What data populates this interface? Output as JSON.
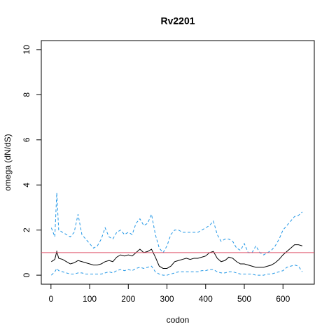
{
  "chart_data": {
    "type": "line",
    "title": "Rv2201",
    "xlabel": "codon",
    "ylabel": "omega (dN/dS)",
    "x": [
      1,
      10,
      15,
      20,
      30,
      40,
      50,
      60,
      70,
      80,
      90,
      100,
      110,
      120,
      130,
      140,
      150,
      160,
      170,
      180,
      190,
      200,
      210,
      220,
      230,
      240,
      250,
      260,
      270,
      280,
      290,
      300,
      310,
      320,
      330,
      340,
      350,
      360,
      370,
      380,
      390,
      400,
      410,
      420,
      430,
      440,
      450,
      460,
      470,
      480,
      490,
      500,
      510,
      520,
      530,
      540,
      550,
      560,
      570,
      580,
      590,
      600,
      610,
      620,
      630,
      640,
      650
    ],
    "series": [
      {
        "color": "#2297e6",
        "dashed": true,
        "values": [
          2.1,
          1.7,
          3.65,
          2.0,
          1.9,
          1.8,
          1.7,
          1.9,
          2.7,
          1.8,
          1.6,
          1.4,
          1.2,
          1.3,
          1.6,
          2.1,
          1.7,
          1.6,
          1.9,
          2.0,
          1.8,
          1.9,
          1.8,
          2.3,
          2.5,
          2.2,
          2.3,
          2.7,
          1.8,
          1.2,
          1.0,
          1.3,
          1.8,
          2.0,
          2.0,
          1.9,
          1.9,
          1.9,
          1.9,
          1.9,
          2.0,
          2.1,
          2.2,
          2.4,
          1.8,
          1.5,
          1.6,
          1.6,
          1.5,
          1.2,
          1.1,
          1.4,
          1.0,
          1.0,
          1.3,
          1.0,
          0.9,
          1.0,
          1.1,
          1.3,
          1.6,
          2.0,
          2.2,
          2.4,
          2.6,
          2.65,
          2.8
        ]
      },
      {
        "color": "#2297e6",
        "dashed": true,
        "values": [
          0,
          0.15,
          0.3,
          0.2,
          0.15,
          0.1,
          0.05,
          0.05,
          0.1,
          0.1,
          0.05,
          0.05,
          0.05,
          0.05,
          0.05,
          0.1,
          0.15,
          0.1,
          0.2,
          0.25,
          0.2,
          0.25,
          0.2,
          0.3,
          0.35,
          0.3,
          0.35,
          0.4,
          0.15,
          0.05,
          0,
          0,
          0.05,
          0.1,
          0.15,
          0.15,
          0.15,
          0.15,
          0.15,
          0.15,
          0.2,
          0.2,
          0.25,
          0.25,
          0.15,
          0.1,
          0.1,
          0.15,
          0.15,
          0.1,
          0.05,
          0.05,
          0.05,
          0.05,
          0,
          0,
          0,
          0.05,
          0.05,
          0.1,
          0.15,
          0.2,
          0.35,
          0.4,
          0.45,
          0.4,
          0.15
        ]
      },
      {
        "color": "#000000",
        "dashed": false,
        "values": [
          0.6,
          0.7,
          1.05,
          0.75,
          0.7,
          0.6,
          0.5,
          0.55,
          0.65,
          0.6,
          0.55,
          0.5,
          0.45,
          0.45,
          0.5,
          0.6,
          0.65,
          0.6,
          0.8,
          0.9,
          0.85,
          0.9,
          0.85,
          1.0,
          1.15,
          1.0,
          1.05,
          1.15,
          0.8,
          0.4,
          0.3,
          0.3,
          0.4,
          0.6,
          0.65,
          0.7,
          0.75,
          0.7,
          0.75,
          0.75,
          0.8,
          0.85,
          1.0,
          1.05,
          0.75,
          0.6,
          0.65,
          0.8,
          0.75,
          0.6,
          0.5,
          0.5,
          0.45,
          0.4,
          0.35,
          0.35,
          0.35,
          0.4,
          0.45,
          0.55,
          0.7,
          0.9,
          1.05,
          1.2,
          1.35,
          1.35,
          1.3
        ]
      }
    ],
    "reference_line": {
      "value": 1,
      "color": "#df536b"
    },
    "xlim": [
      -25,
      681
    ],
    "xticks": [
      0,
      100,
      200,
      300,
      400,
      500,
      600
    ],
    "ylim": [
      -0.4,
      10.4
    ],
    "yticks": [
      0,
      2,
      4,
      6,
      8,
      10
    ]
  }
}
